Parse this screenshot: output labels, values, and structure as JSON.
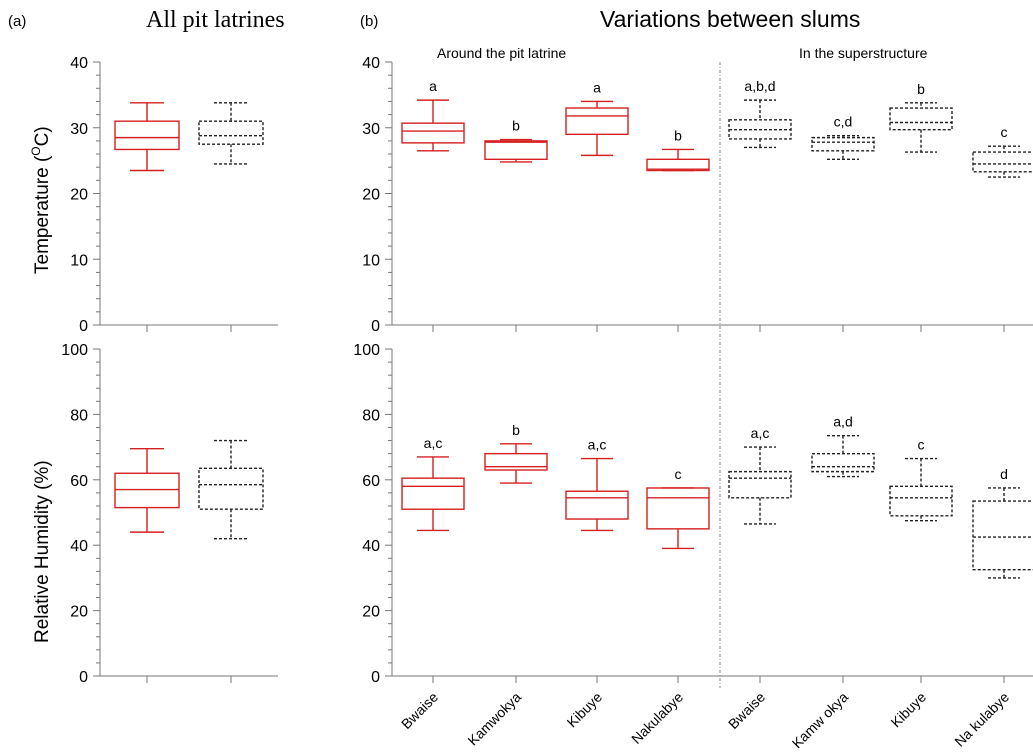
{
  "figure": {
    "panel_a_letter": "(a)",
    "panel_a_title": "All pit latrines",
    "panel_b_letter": "(b)",
    "panel_b_title": "Variations between slums",
    "subtitle_around": "Around the pit latrine",
    "subtitle_super": "In the superstructure",
    "temp_ylabel_main": "Temperature (",
    "temp_ylabel_super": "O",
    "temp_ylabel_unit": "C)",
    "rh_ylabel": "Relative Humidity (%)"
  },
  "colors": {
    "around": "#d62020",
    "superstructure": "#222222",
    "axis": "#777777",
    "divider": "#888888"
  },
  "chart_data": [
    {
      "id": "temp_all",
      "type": "box",
      "ylim": [
        0,
        40
      ],
      "yticks": [
        0,
        10,
        20,
        30,
        40
      ],
      "categories": [
        "",
        ""
      ],
      "boxes": [
        {
          "group": "around",
          "min": 23.5,
          "q1": 26.7,
          "median": 28.5,
          "q3": 31.0,
          "max": 33.8
        },
        {
          "group": "superstructure",
          "min": 24.5,
          "q1": 27.5,
          "median": 28.8,
          "q3": 31.0,
          "max": 33.8
        }
      ]
    },
    {
      "id": "rh_all",
      "type": "box",
      "ylim": [
        0,
        100
      ],
      "yticks": [
        0,
        20,
        40,
        60,
        80,
        100
      ],
      "categories": [
        "",
        ""
      ],
      "boxes": [
        {
          "group": "around",
          "min": 44,
          "q1": 51.5,
          "median": 57,
          "q3": 62,
          "max": 69.5
        },
        {
          "group": "superstructure",
          "min": 42,
          "q1": 51,
          "median": 58.5,
          "q3": 63.5,
          "max": 72
        }
      ]
    },
    {
      "id": "temp_slums",
      "type": "box",
      "ylim": [
        0,
        40
      ],
      "yticks": [
        0,
        10,
        20,
        30,
        40
      ],
      "categories": [
        "Bwaise",
        "Kamwokya",
        "Kibuye",
        "Nakulabye",
        "Bwaise",
        "Kamw okya",
        "Kibuye",
        "Na kulabye"
      ],
      "boxes": [
        {
          "group": "around",
          "min": 26.5,
          "q1": 27.7,
          "median": 29.5,
          "q3": 30.7,
          "max": 34.2,
          "letter": "a"
        },
        {
          "group": "around",
          "min": 24.8,
          "q1": 25.2,
          "median": 27.8,
          "q3": 28.0,
          "max": 28.2,
          "letter": "b"
        },
        {
          "group": "around",
          "min": 25.8,
          "q1": 29.0,
          "median": 31.8,
          "q3": 33.0,
          "max": 34.0,
          "letter": "a"
        },
        {
          "group": "around",
          "min": 23.5,
          "q1": 23.5,
          "median": 23.7,
          "q3": 25.2,
          "max": 26.7,
          "letter": "b"
        },
        {
          "group": "superstructure",
          "min": 27.0,
          "q1": 28.3,
          "median": 29.7,
          "q3": 31.2,
          "max": 34.2,
          "letter": "a,b,d"
        },
        {
          "group": "superstructure",
          "min": 25.2,
          "q1": 26.5,
          "median": 27.8,
          "q3": 28.5,
          "max": 28.8,
          "letter": "c,d"
        },
        {
          "group": "superstructure",
          "min": 26.3,
          "q1": 29.7,
          "median": 30.8,
          "q3": 33.0,
          "max": 33.8,
          "letter": "b"
        },
        {
          "group": "superstructure",
          "min": 22.5,
          "q1": 23.3,
          "median": 24.5,
          "q3": 26.3,
          "max": 27.2,
          "letter": "c"
        }
      ]
    },
    {
      "id": "rh_slums",
      "type": "box",
      "ylim": [
        0,
        100
      ],
      "yticks": [
        0,
        20,
        40,
        60,
        80,
        100
      ],
      "categories": [
        "Bwaise",
        "Kamwokya",
        "Kibuye",
        "Nakulabye",
        "Bwaise",
        "Kamw okya",
        "Kibuye",
        "Na kulabye"
      ],
      "boxes": [
        {
          "group": "around",
          "min": 44.5,
          "q1": 51,
          "median": 58,
          "q3": 60.5,
          "max": 67,
          "letter": "a,c"
        },
        {
          "group": "around",
          "min": 59,
          "q1": 63,
          "median": 64,
          "q3": 68,
          "max": 71,
          "letter": "b"
        },
        {
          "group": "around",
          "min": 44.5,
          "q1": 48,
          "median": 54.5,
          "q3": 56.5,
          "max": 66.5,
          "letter": "a,c"
        },
        {
          "group": "around",
          "min": 39,
          "q1": 45,
          "median": 54.5,
          "q3": 57.5,
          "max": 57.5,
          "letter": "c"
        },
        {
          "group": "superstructure",
          "min": 46.5,
          "q1": 54.5,
          "median": 60.5,
          "q3": 62.5,
          "max": 70,
          "letter": "a,c"
        },
        {
          "group": "superstructure",
          "min": 61,
          "q1": 62.5,
          "median": 64,
          "q3": 68,
          "max": 73.5,
          "letter": "a,d"
        },
        {
          "group": "superstructure",
          "min": 47.5,
          "q1": 49,
          "median": 54.5,
          "q3": 58,
          "max": 66.5,
          "letter": "c"
        },
        {
          "group": "superstructure",
          "min": 30,
          "q1": 32.5,
          "median": 42.5,
          "q3": 53.5,
          "max": 57.5,
          "letter": "d"
        }
      ]
    }
  ]
}
